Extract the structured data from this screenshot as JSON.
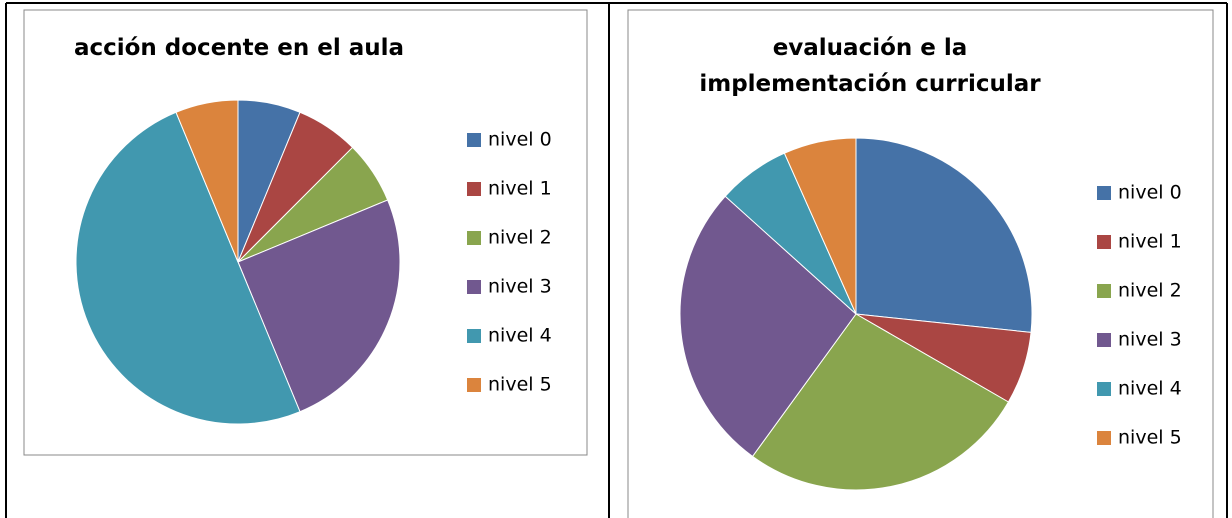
{
  "chart_data": [
    {
      "type": "pie",
      "title": "acción docente en el aula",
      "categories": [
        "nivel 0",
        "nivel 1",
        "nivel 2",
        "nivel 3",
        "nivel 4",
        "nivel 5"
      ],
      "values": [
        1,
        1,
        1,
        4,
        8,
        1
      ],
      "colors": [
        "#4572A7",
        "#AA4643",
        "#89A54E",
        "#71588F",
        "#4198AF",
        "#DB843D"
      ],
      "legend": "right"
    },
    {
      "type": "pie",
      "title": "evaluación e la implementación curricular",
      "categories": [
        "nivel 0",
        "nivel 1",
        "nivel 2",
        "nivel 3",
        "nivel 4",
        "nivel 5"
      ],
      "values": [
        4,
        1,
        4,
        4,
        1,
        1
      ],
      "colors": [
        "#4572A7",
        "#AA4643",
        "#89A54E",
        "#71588F",
        "#4198AF",
        "#DB843D"
      ],
      "legend": "right"
    }
  ]
}
